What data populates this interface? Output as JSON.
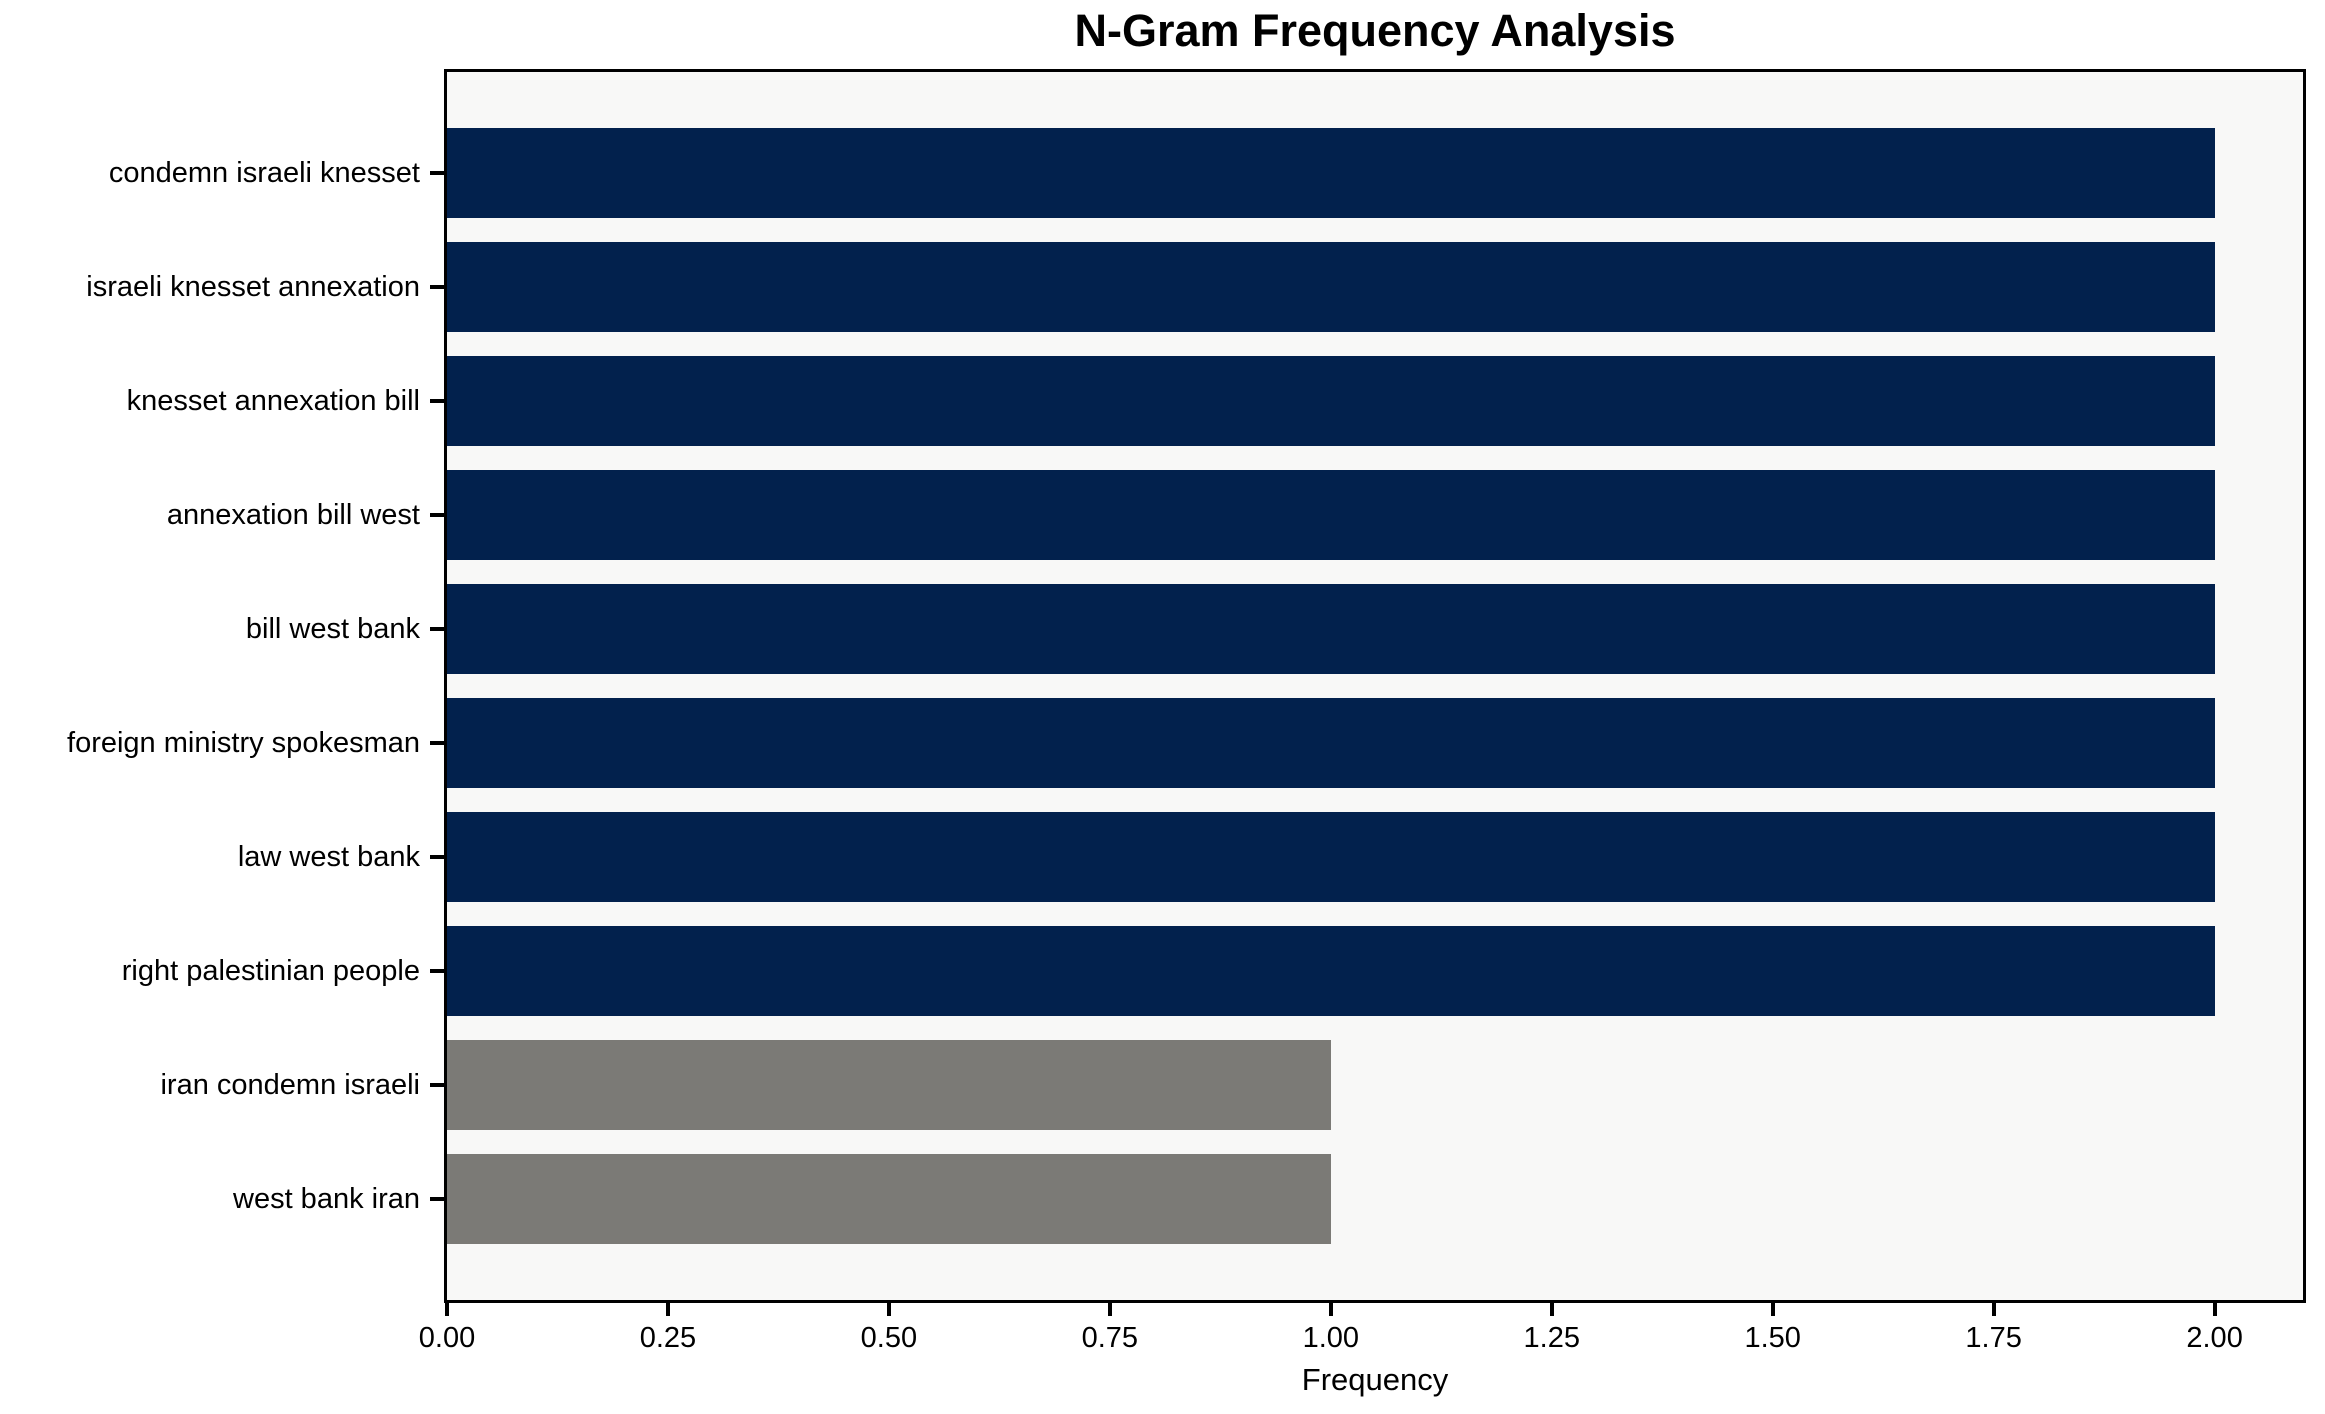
{
  "chart_data": {
    "type": "bar",
    "orientation": "horizontal",
    "title": "N-Gram Frequency Analysis",
    "xlabel": "Frequency",
    "ylabel": "",
    "categories": [
      "condemn israeli knesset",
      "israeli knesset annexation",
      "knesset annexation bill",
      "annexation bill west",
      "bill west bank",
      "foreign ministry spokesman",
      "law west bank",
      "right palestinian people",
      "iran condemn israeli",
      "west bank iran"
    ],
    "values": [
      2,
      2,
      2,
      2,
      2,
      2,
      2,
      2,
      1,
      1
    ],
    "bar_colors": [
      "#02214d",
      "#02214d",
      "#02214d",
      "#02214d",
      "#02214d",
      "#02214d",
      "#02214d",
      "#02214d",
      "#7b7a76",
      "#7b7a76"
    ],
    "xlim": [
      0,
      2.1
    ],
    "xtick_labels": [
      "0.00",
      "0.25",
      "0.50",
      "0.75",
      "1.00",
      "1.25",
      "1.50",
      "1.75",
      "2.00"
    ],
    "xtick_values": [
      0,
      0.25,
      0.5,
      0.75,
      1.0,
      1.25,
      1.5,
      1.75,
      2.0
    ],
    "grid": "off",
    "legend": "none",
    "colors": {
      "primary_bar": "#02214d",
      "secondary_bar": "#7b7a76",
      "plot_background": "#f8f8f7",
      "figure_background": "#ffffff",
      "spine": "#000000",
      "text": "#000000"
    }
  }
}
